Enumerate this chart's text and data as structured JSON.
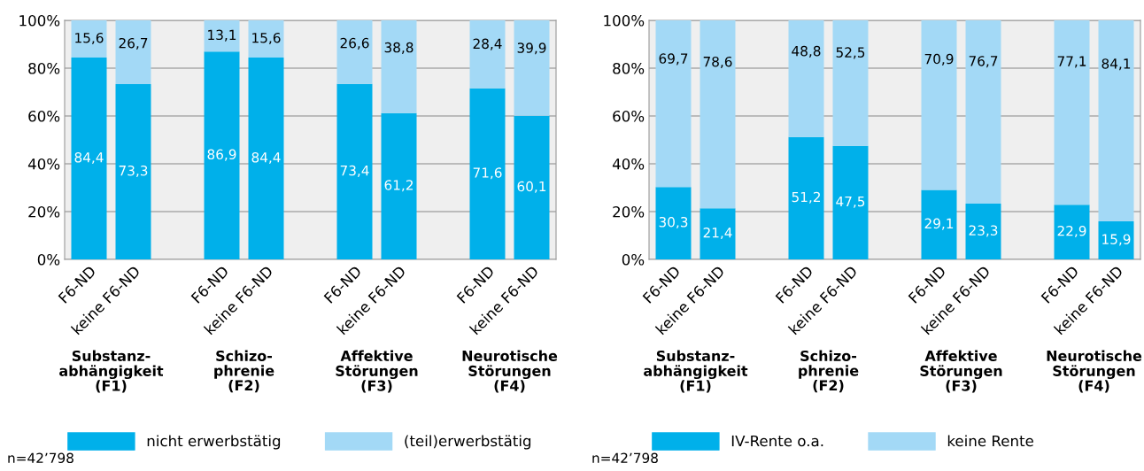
{
  "chart_data": [
    {
      "type": "bar",
      "stacked": true,
      "categories": [
        "F6-ND",
        "keine F6-ND",
        null,
        "F6-ND",
        "keine F6-ND",
        null,
        "F6-ND",
        "keine F6-ND",
        null,
        "F6-ND",
        "keine F6-ND"
      ],
      "series": [
        {
          "name": "nicht erwerbstätig",
          "color": "#00b0ea",
          "values": [
            84.4,
            73.3,
            null,
            86.9,
            84.4,
            null,
            73.4,
            61.2,
            null,
            71.6,
            60.1
          ],
          "value_labels": [
            "84,4",
            "73,3",
            null,
            "86,9",
            "84,4",
            null,
            "73,4",
            "61,2",
            null,
            "71,6",
            "60,1"
          ]
        },
        {
          "name": "(teil)erwerbstätig",
          "color": "#a3d9f6",
          "values": [
            15.6,
            26.7,
            null,
            13.1,
            15.6,
            null,
            26.6,
            38.8,
            null,
            28.4,
            39.9
          ],
          "value_labels": [
            "15,6",
            "26,7",
            null,
            "13,1",
            "15,6",
            null,
            "26,6",
            "38,8",
            null,
            "28,4",
            "39,9"
          ]
        }
      ],
      "ylim": [
        0,
        100
      ],
      "yticks": [
        {
          "value": 0,
          "label": "0%"
        },
        {
          "value": 20,
          "label": "20%"
        },
        {
          "value": 40,
          "label": "40%"
        },
        {
          "value": 60,
          "label": "60%"
        },
        {
          "value": 80,
          "label": "80%"
        },
        {
          "value": 100,
          "label": "100%"
        }
      ],
      "grid": "y",
      "legend": "bottom",
      "annotations": [
        "Substanz-\nabhängigkeit\n(F1)",
        "Schizo-\nphrenie\n(F2)",
        "Affektive\nStörungen\n(F3)",
        "Neurotische\nStörungen\n(F4)",
        "n=42’798"
      ]
    },
    {
      "type": "bar",
      "stacked": true,
      "categories": [
        "F6-ND",
        "keine F6-ND",
        null,
        "F6-ND",
        "keine F6-ND",
        null,
        "F6-ND",
        "keine F6-ND",
        null,
        "F6-ND",
        "keine F6-ND"
      ],
      "series": [
        {
          "name": "IV-Rente o.a.",
          "color": "#00b0ea",
          "values": [
            30.3,
            21.4,
            null,
            51.2,
            47.5,
            null,
            29.1,
            23.3,
            null,
            22.9,
            15.9
          ],
          "value_labels": [
            "30,3",
            "21,4",
            null,
            "51,2",
            "47,5",
            null,
            "29,1",
            "23,3",
            null,
            "22,9",
            "15,9"
          ]
        },
        {
          "name": "keine Rente",
          "color": "#a3d9f6",
          "values": [
            69.7,
            78.6,
            null,
            48.8,
            52.5,
            null,
            70.9,
            76.7,
            null,
            77.1,
            84.1
          ],
          "value_labels": [
            "69,7",
            "78,6",
            null,
            "48,8",
            "52,5",
            null,
            "70,9",
            "76,7",
            null,
            "77,1",
            "84,1"
          ]
        }
      ],
      "ylim": [
        0,
        100
      ],
      "yticks": [
        {
          "value": 0,
          "label": "0%"
        },
        {
          "value": 20,
          "label": "20%"
        },
        {
          "value": 40,
          "label": "40%"
        },
        {
          "value": 60,
          "label": "60%"
        },
        {
          "value": 80,
          "label": "80%"
        },
        {
          "value": 100,
          "label": "100%"
        }
      ],
      "grid": "y",
      "legend": "bottom",
      "annotations": [
        "Substanz-\nabhängigkeit\n(F1)",
        "Schizo-\nphrenie\n(F2)",
        "Affektive\nStörungen\n(F3)",
        "Neurotische\nStörungen\n(F4)",
        "n=42’798"
      ]
    }
  ]
}
